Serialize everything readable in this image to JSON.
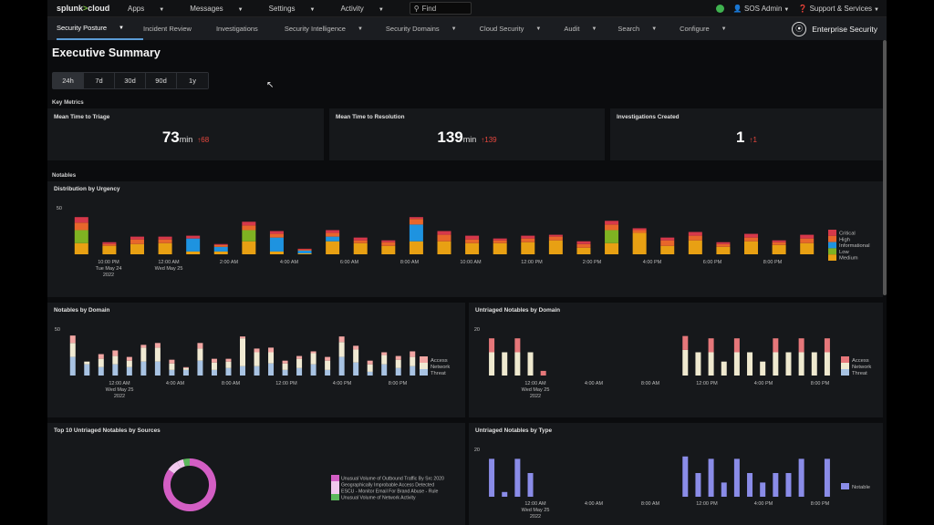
{
  "topbar": {
    "logo_main": "splunk",
    "logo_gt": ">",
    "logo_tail": "cloud",
    "menus": [
      "Apps",
      "Messages",
      "Settings",
      "Activity"
    ],
    "find_placeholder": "Find",
    "user": "SOS Admin",
    "support": "Support & Services"
  },
  "appbar": {
    "nav": [
      "Security Posture",
      "Incident Review",
      "Investigations",
      "Security Intelligence",
      "Security Domains",
      "Cloud Security",
      "Audit",
      "Search",
      "Configure"
    ],
    "dropdown_items": [
      true,
      false,
      false,
      true,
      true,
      true,
      true,
      true,
      true
    ],
    "app_name": "Enterprise Security"
  },
  "page": {
    "title": "Executive Summary",
    "ranges": [
      "24h",
      "7d",
      "30d",
      "90d",
      "1y"
    ],
    "selected_range": "24h"
  },
  "key_metrics": {
    "label": "Key Metrics",
    "cards": [
      {
        "title": "Mean Time to Triage",
        "value": "73",
        "unit": "min",
        "delta": "68"
      },
      {
        "title": "Mean Time to Resolution",
        "value": "139",
        "unit": "min",
        "delta": "139"
      },
      {
        "title": "Investigations Created",
        "value": "1",
        "unit": "",
        "delta": "1"
      }
    ]
  },
  "notables_label": "Notables",
  "colors": {
    "critical": "#d6384a",
    "high": "#e8662b",
    "informational": "#1e93e0",
    "low": "#7fb222",
    "medium": "#e8a013",
    "access": "#f2a6a3",
    "network": "#f0ead3",
    "threat": "#a8c3e3",
    "untriaged_red": "#e6777a",
    "untriaged_cream": "#efe9cf",
    "notable": "#8a8ce8",
    "donut_pink": "#d35ec4",
    "donut_light": "#f1c8ee",
    "donut_green": "#5cb85c"
  },
  "chart_data": [
    {
      "type": "bar",
      "title": "Distribution by Urgency",
      "stacked": true,
      "ylim": [
        0,
        50
      ],
      "yticks": [
        50
      ],
      "x_tick_labels": [
        "10:00 PM\nTue May 24\n2022",
        "12:00 AM\nWed May 25",
        "2:00 AM",
        "4:00 AM",
        "6:00 AM",
        "8:00 AM",
        "10:00 AM",
        "12:00 PM",
        "2:00 PM",
        "4:00 PM",
        "6:00 PM",
        "8:00 PM"
      ],
      "legend": [
        "Critical",
        "High",
        "Informational",
        "Low",
        "Medium"
      ],
      "legend_position": "right",
      "series": [
        {
          "name": "Critical",
          "values": [
            6,
            2,
            3,
            3,
            3,
            1,
            4,
            3,
            1,
            3,
            3,
            2,
            2,
            4,
            4,
            2,
            3,
            2,
            3,
            4,
            2,
            3,
            4,
            2,
            4,
            2,
            4
          ]
        },
        {
          "name": "High",
          "values": [
            8,
            2,
            5,
            4,
            0,
            2,
            5,
            4,
            1,
            4,
            3,
            4,
            6,
            7,
            4,
            3,
            4,
            4,
            4,
            6,
            3,
            6,
            5,
            3,
            4,
            3,
            5
          ]
        },
        {
          "name": "Informational",
          "values": [
            0,
            0,
            0,
            0,
            14,
            5,
            0,
            15,
            3,
            5,
            0,
            0,
            18,
            0,
            0,
            0,
            0,
            0,
            0,
            0,
            0,
            0,
            0,
            0,
            0,
            0,
            0
          ]
        },
        {
          "name": "Low",
          "values": [
            14,
            0,
            0,
            0,
            0,
            0,
            12,
            0,
            0,
            0,
            0,
            0,
            0,
            0,
            0,
            0,
            0,
            0,
            0,
            14,
            0,
            0,
            0,
            0,
            0,
            0,
            0
          ]
        },
        {
          "name": "Medium",
          "values": [
            12,
            9,
            11,
            12,
            3,
            3,
            14,
            3,
            1,
            14,
            12,
            9,
            14,
            14,
            12,
            12,
            13,
            15,
            7,
            12,
            23,
            9,
            15,
            8,
            14,
            10,
            12
          ]
        }
      ]
    },
    {
      "type": "bar",
      "title": "Notables by Domain",
      "stacked": true,
      "ylim": [
        0,
        50
      ],
      "yticks": [
        50
      ],
      "x_tick_labels": [
        "12:00 AM\nWed May 25\n2022",
        "4:00 AM",
        "8:00 AM",
        "12:00 PM",
        "4:00 PM",
        "8:00 PM"
      ],
      "legend": [
        "Access",
        "Network",
        "Threat"
      ],
      "legend_position": "right",
      "series": [
        {
          "name": "Access",
          "values": [
            8,
            0,
            5,
            6,
            4,
            3,
            5,
            4,
            1,
            6,
            4,
            3,
            2,
            4,
            5,
            3,
            3,
            2,
            4,
            6,
            4,
            4,
            3,
            4,
            6
          ]
        },
        {
          "name": "Network",
          "values": [
            15,
            3,
            9,
            9,
            7,
            15,
            15,
            7,
            2,
            13,
            8,
            7,
            30,
            15,
            12,
            7,
            10,
            12,
            10,
            16,
            14,
            8,
            10,
            9,
            10
          ]
        },
        {
          "name": "Threat",
          "values": [
            20,
            12,
            9,
            12,
            9,
            15,
            15,
            6,
            6,
            16,
            6,
            8,
            10,
            10,
            13,
            6,
            8,
            12,
            6,
            20,
            14,
            4,
            12,
            8,
            10
          ]
        }
      ]
    },
    {
      "type": "bar",
      "title": "Untriaged Notables by Domain",
      "stacked": true,
      "ylim": [
        0,
        20
      ],
      "yticks": [
        20
      ],
      "x_tick_labels": [
        "12:00 AM\nWed May 25\n2022",
        "4:00 AM",
        "8:00 AM",
        "12:00 PM",
        "4:00 PM",
        "8:00 PM"
      ],
      "legend": [
        "Access",
        "Network",
        "Threat"
      ],
      "legend_position": "right",
      "series": [
        {
          "name": "Access",
          "values": [
            6,
            0,
            6,
            0,
            2,
            0,
            0,
            0,
            0,
            0,
            0,
            0,
            0,
            0,
            0,
            6,
            0,
            6,
            0,
            6,
            0,
            0,
            6,
            0,
            6,
            0,
            6
          ]
        },
        {
          "name": "Network",
          "values": [
            10,
            10,
            10,
            10,
            0,
            0,
            0,
            0,
            0,
            0,
            0,
            0,
            0,
            0,
            0,
            11,
            10,
            10,
            6,
            10,
            10,
            6,
            10,
            10,
            10,
            10,
            10
          ]
        }
      ]
    },
    {
      "type": "pie",
      "title": "Top 10 Untriaged Notables by Sources",
      "legend": [
        "Unusual Volume of Outbound Traffic By Src 2020",
        "Geographically Improbable Access Detected",
        "ESCU - Monitor Email For Brand Abuse - Rule",
        "Unusual Volume of Network Activity"
      ],
      "values": [
        85,
        7,
        4,
        4
      ]
    },
    {
      "type": "bar",
      "title": "Untriaged Notables by Type",
      "ylim": [
        0,
        20
      ],
      "yticks": [
        20
      ],
      "x_tick_labels": [
        "12:00 AM\nWed May 25\n2022",
        "4:00 AM",
        "8:00 AM",
        "12:00 PM",
        "4:00 PM",
        "8:00 PM"
      ],
      "legend": [
        "Notable"
      ],
      "legend_position": "right",
      "series": [
        {
          "name": "Notable",
          "values": [
            16,
            2,
            16,
            10,
            0,
            0,
            0,
            0,
            0,
            0,
            0,
            0,
            0,
            0,
            0,
            17,
            10,
            16,
            6,
            16,
            10,
            6,
            10,
            10,
            16,
            0,
            16
          ]
        }
      ]
    }
  ]
}
